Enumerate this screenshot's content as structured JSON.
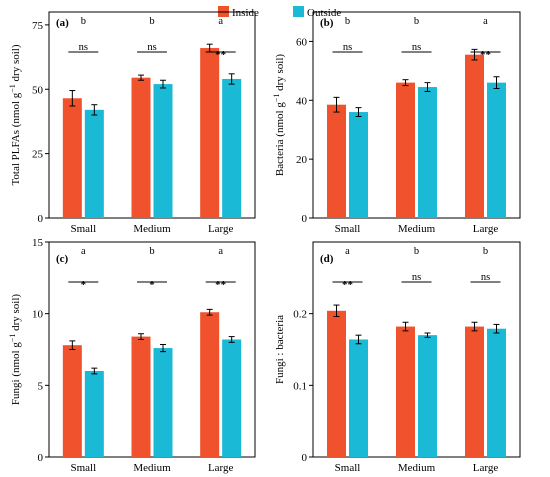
{
  "legend": [
    {
      "name": "Inside",
      "color": "#f0522d"
    },
    {
      "name": "Outside",
      "color": "#1ab9d6"
    }
  ],
  "colors": {
    "axis": "#000000",
    "error_bar": "#000000"
  },
  "chart_data": [
    {
      "type": "bar",
      "panel_label": "(a)",
      "ylabel_text": "Total PLFAs (nmol g",
      "ylabel_sup": "−1",
      "ylabel_tail": " dry soil)",
      "categories": [
        "Small",
        "Medium",
        "Large"
      ],
      "series": [
        {
          "name": "Inside",
          "values": [
            46.5,
            54.5,
            66
          ],
          "errors": [
            3,
            1,
            1.5
          ]
        },
        {
          "name": "Outside",
          "values": [
            42,
            52,
            54
          ],
          "errors": [
            2,
            1.5,
            2
          ]
        }
      ],
      "ylim": [
        0,
        80
      ],
      "yticks": [
        0,
        25,
        50,
        75
      ],
      "letters": [
        "b",
        "b",
        "a"
      ],
      "significance": [
        "ns",
        "ns",
        "**"
      ]
    },
    {
      "type": "bar",
      "panel_label": "(b)",
      "ylabel_text": "Bacteria (nmol g",
      "ylabel_sup": "−1",
      "ylabel_tail": " dry soil)",
      "categories": [
        "Small",
        "Medium",
        "Large"
      ],
      "series": [
        {
          "name": "Inside",
          "values": [
            38.5,
            46,
            55.5
          ],
          "errors": [
            2.5,
            1,
            1.8
          ]
        },
        {
          "name": "Outside",
          "values": [
            36,
            44.5,
            46
          ],
          "errors": [
            1.5,
            1.5,
            2
          ]
        }
      ],
      "ylim": [
        0,
        70
      ],
      "yticks": [
        0,
        20,
        40,
        60
      ],
      "letters": [
        "b",
        "b",
        "a"
      ],
      "significance": [
        "ns",
        "ns",
        "**"
      ]
    },
    {
      "type": "bar",
      "panel_label": "(c)",
      "ylabel_text": "Fungi (nmol g",
      "ylabel_sup": "−1",
      "ylabel_tail": " dry soil)",
      "categories": [
        "Small",
        "Medium",
        "Large"
      ],
      "series": [
        {
          "name": "Inside",
          "values": [
            7.8,
            8.4,
            10.1
          ],
          "errors": [
            0.3,
            0.2,
            0.2
          ]
        },
        {
          "name": "Outside",
          "values": [
            6,
            7.6,
            8.2
          ],
          "errors": [
            0.2,
            0.25,
            0.2
          ]
        }
      ],
      "ylim": [
        0,
        15
      ],
      "yticks": [
        0,
        5,
        10,
        15
      ],
      "letters": [
        "a",
        "b",
        "a"
      ],
      "significance": [
        "*",
        "*",
        "**"
      ]
    },
    {
      "type": "bar",
      "panel_label": "(d)",
      "ylabel_text": "Fungi : bacteria",
      "ylabel_sup": "",
      "ylabel_tail": "",
      "categories": [
        "Small",
        "Medium",
        "Large"
      ],
      "series": [
        {
          "name": "Inside",
          "values": [
            0.204,
            0.182,
            0.182
          ],
          "errors": [
            0.008,
            0.006,
            0.006
          ]
        },
        {
          "name": "Outside",
          "values": [
            0.164,
            0.17,
            0.179
          ],
          "errors": [
            0.006,
            0.003,
            0.006
          ]
        }
      ],
      "ylim": [
        0,
        0.3
      ],
      "yticks": [
        0,
        0.1,
        0.2
      ],
      "letters": [
        "a",
        "b",
        "b"
      ],
      "significance": [
        "**",
        "ns",
        "ns"
      ]
    }
  ]
}
